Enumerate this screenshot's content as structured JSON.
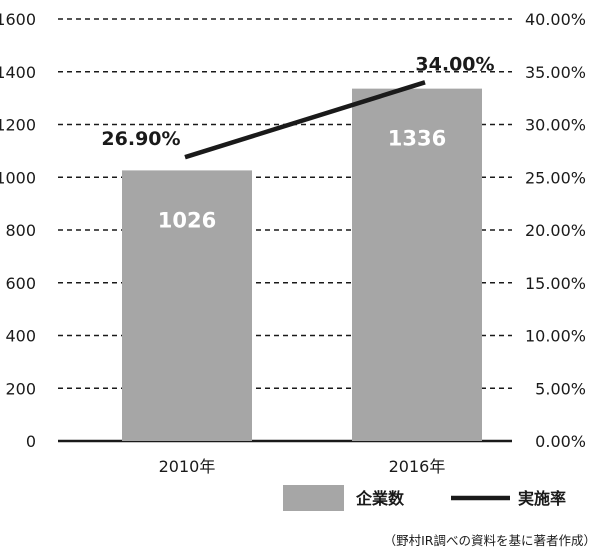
{
  "chart_data": {
    "type": "bar",
    "categories": [
      "2010年",
      "2016年"
    ],
    "series": [
      {
        "name": "企業数",
        "type": "bar",
        "axis": "left",
        "values": [
          1026,
          1336
        ],
        "color": "#a6a6a6",
        "data_labels": [
          "1026",
          "1336"
        ]
      },
      {
        "name": "実施率",
        "type": "line",
        "axis": "right",
        "values": [
          26.9,
          34.0
        ],
        "color": "#1a1a1a",
        "data_labels": [
          "26.90%",
          "34.00%"
        ]
      }
    ],
    "ylim": [
      0,
      1600
    ],
    "yticks": [
      "0",
      "200",
      "400",
      "600",
      "800",
      "1000",
      "1200",
      "1400",
      "1600"
    ],
    "y2lim": [
      0,
      40
    ],
    "y2ticks": [
      "0.00%",
      "5.00%",
      "10.00%",
      "15.00%",
      "20.00%",
      "25.00%",
      "30.00%",
      "35.00%",
      "40.00%"
    ],
    "grid": "dashed horizontal",
    "legend_position": "bottom-right",
    "legend": [
      "企業数",
      "実施率"
    ],
    "source_note": "（野村IR調べの資料を基に著者作成）"
  }
}
